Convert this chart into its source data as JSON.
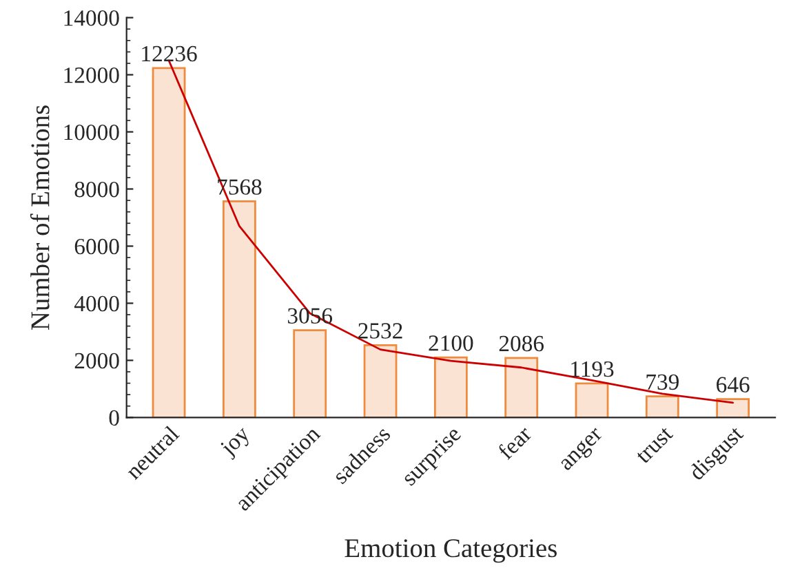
{
  "chart_data": {
    "type": "bar",
    "xlabel": "Emotion Categories",
    "ylabel": "Number of Emotions",
    "categories": [
      "neutral",
      "joy",
      "anticipation",
      "sadness",
      "surprise",
      "fear",
      "anger",
      "trust",
      "disgust"
    ],
    "series": [
      {
        "color": "#fbe3d4",
        "values": [
          12236,
          7568,
          3056,
          2532,
          2100,
          2086,
          1193,
          739,
          646
        ],
        "value_labels": [
          "12236",
          "7568",
          "3056",
          "2532",
          "2100",
          "2086",
          "1193",
          "739",
          "646"
        ]
      },
      {
        "type": "line",
        "color": "#cc0000",
        "values": [
          12500,
          6700,
          3650,
          2380,
          1980,
          1750,
          1300,
          830,
          520
        ]
      }
    ],
    "ylim": [
      0,
      14000
    ],
    "yticks": [
      0,
      2000,
      4000,
      6000,
      8000,
      10000,
      12000,
      14000
    ],
    "grid": false,
    "legend": false
  }
}
